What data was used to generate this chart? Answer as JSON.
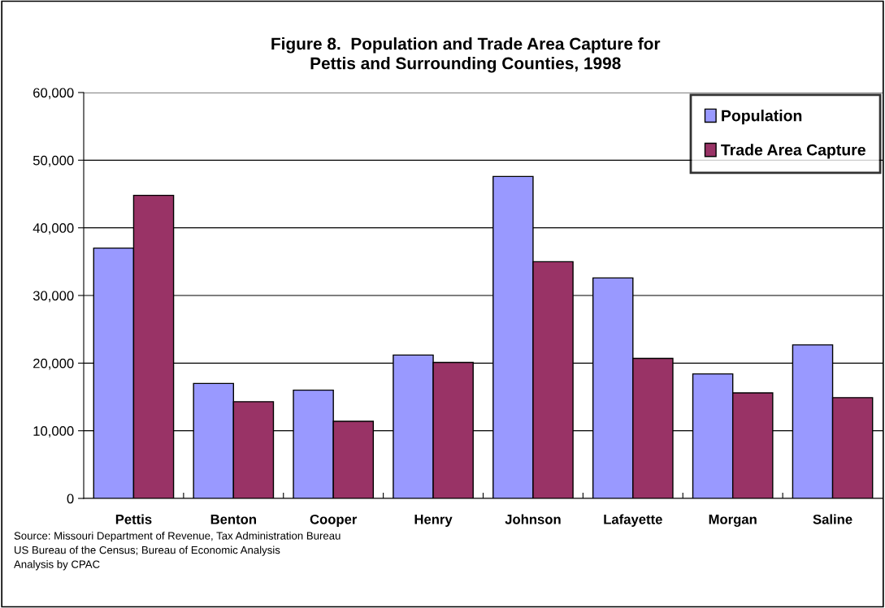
{
  "chart_data": {
    "type": "bar",
    "title": "Figure 8.  Population and Trade Area Capture for\nPettis and Surrounding Counties, 1998",
    "categories": [
      "Pettis",
      "Benton",
      "Cooper",
      "Henry",
      "Johnson",
      "Lafayette",
      "Morgan",
      "Saline"
    ],
    "series": [
      {
        "name": "Population",
        "color": "#9999ff",
        "values": [
          37000,
          17000,
          16000,
          21200,
          47600,
          32600,
          18400,
          22700
        ]
      },
      {
        "name": "Trade Area Capture",
        "color": "#993366",
        "values": [
          44800,
          14300,
          11400,
          20100,
          35000,
          20700,
          15600,
          14900
        ]
      }
    ],
    "ylim": [
      0,
      60000
    ],
    "yticks": [
      {
        "value": 0,
        "label": "0"
      },
      {
        "value": 10000,
        "label": "10,000"
      },
      {
        "value": 20000,
        "label": "20,000"
      },
      {
        "value": 30000,
        "label": "30,000"
      },
      {
        "value": 40000,
        "label": "40,000"
      },
      {
        "value": 50000,
        "label": "50,000"
      },
      {
        "value": 60000,
        "label": "60,000"
      }
    ],
    "grid": "y",
    "legend": "top right",
    "annotations": [
      "Source: Missouri Department of Revenue, Tax Administration Bureau\nUS Bureau of the Census; Bureau of Economic Analysis\nAnalysis by CPAC"
    ]
  }
}
